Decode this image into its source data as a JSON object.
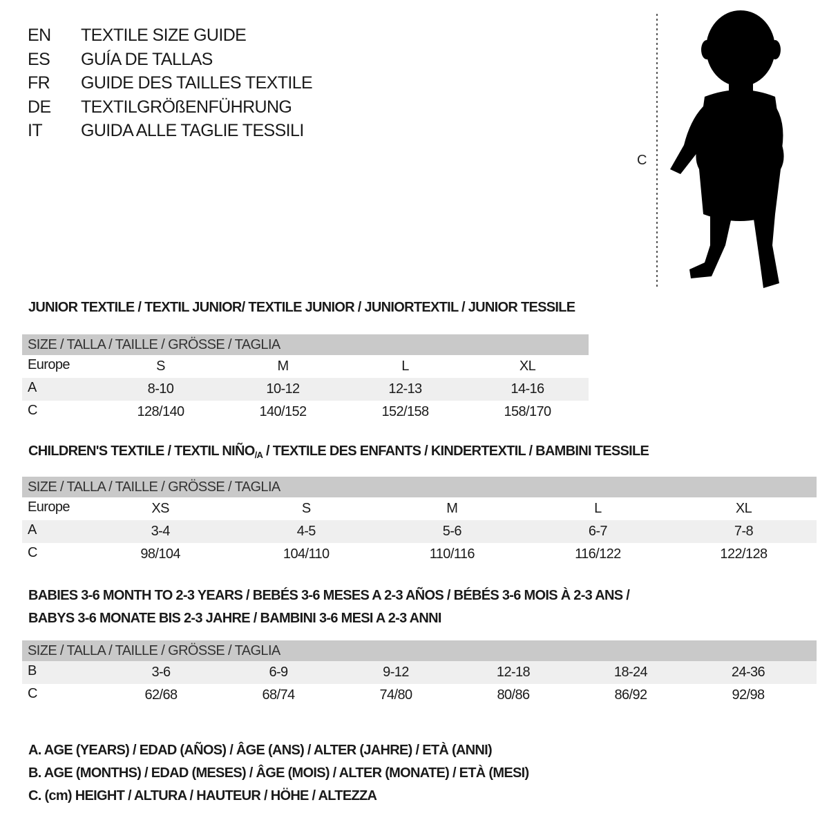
{
  "languages": [
    {
      "code": "EN",
      "title": "TEXTILE SIZE GUIDE"
    },
    {
      "code": "ES",
      "title": "GUÍA DE TALLAS"
    },
    {
      "code": "FR",
      "title": "GUIDE DES TAILLES TEXTILE"
    },
    {
      "code": "DE",
      "title": "TEXTILGRÖßENFÜHRUNG"
    },
    {
      "code": "IT",
      "title": "GUIDA ALLE TAGLIE TESSILI"
    }
  ],
  "figure": {
    "height_label": "C"
  },
  "sections": [
    {
      "title": "JUNIOR TEXTILE / TEXTIL JUNIOR/ TEXTILE JUNIOR / JUNIORTEXTIL / JUNIOR TESSILE",
      "header": "SIZE / TALLA / TAILLE / GRÖSSE / TAGLIA",
      "rows": [
        {
          "label": "Europe",
          "values": [
            "S",
            "M",
            "L",
            "XL"
          ]
        },
        {
          "label": "A",
          "values": [
            "8-10",
            "10-12",
            "12-13",
            "14-16"
          ]
        },
        {
          "label": "C",
          "values": [
            "128/140",
            "140/152",
            "152/158",
            "158/170"
          ]
        }
      ]
    },
    {
      "title_before": "CHILDREN'S TEXTILE / TEXTIL NIÑO",
      "title_sub": "/A",
      "title_after": " / TEXTILE DES ENFANTS / KINDERTEXTIL / BAMBINI TESSILE",
      "header": "SIZE / TALLA / TAILLE / GRÖSSE / TAGLIA",
      "rows": [
        {
          "label": "Europe",
          "values": [
            "XS",
            "S",
            "M",
            "L",
            "XL"
          ]
        },
        {
          "label": "A",
          "values": [
            "3-4",
            "4-5",
            "5-6",
            "6-7",
            "7-8"
          ]
        },
        {
          "label": "C",
          "values": [
            "98/104",
            "104/110",
            "110/116",
            "116/122",
            "122/128"
          ]
        }
      ]
    },
    {
      "title_line1": "BABIES 3-6 MONTH TO 2-3 YEARS / BEBÉS 3-6 MESES A 2-3 AÑOS / BÉBÉS 3-6 MOIS À 2-3 ANS /",
      "title_line2": "BABYS 3-6 MONATE BIS 2-3 JAHRE / BAMBINI 3-6 MESI A 2-3 ANNI",
      "header": "SIZE / TALLA / TAILLE / GRÖSSE / TAGLIA",
      "rows": [
        {
          "label": "B",
          "values": [
            "3-6",
            "6-9",
            "9-12",
            "12-18",
            "18-24",
            "24-36"
          ]
        },
        {
          "label": "C",
          "values": [
            "62/68",
            "68/74",
            "74/80",
            "80/86",
            "86/92",
            "92/98"
          ]
        }
      ]
    }
  ],
  "legend": [
    "A. AGE (YEARS) / EDAD (AÑOS) / ÂGE (ANS) / ALTER (JAHRE) / ETÀ (ANNI)",
    "B. AGE (MONTHS) / EDAD (MESES) / ÂGE (MOIS) / ALTER (MONATE) / ETÀ (MESI)",
    "C. (cm) HEIGHT / ALTURA / HAUTEUR / HÖHE / ALTEZZA"
  ]
}
